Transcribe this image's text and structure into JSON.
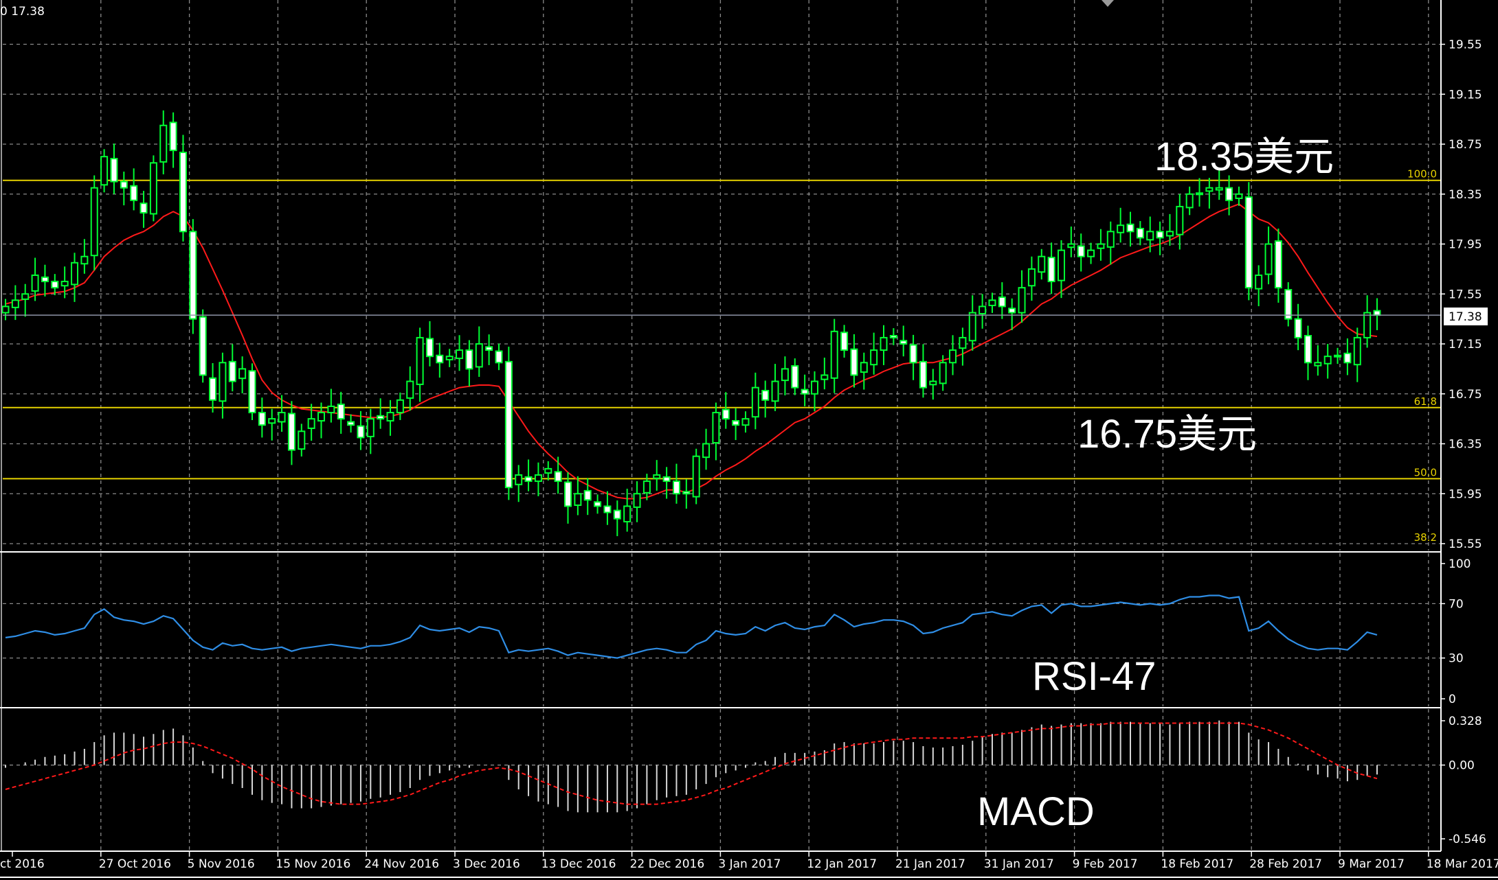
{
  "corner_label": "0 17.38",
  "colors": {
    "background": "#000000",
    "grid": "#8a8a8a",
    "candle": "#00ff33",
    "moving_average": "#ff1a1a",
    "fib_level": "#e6d200",
    "rsi": "#2f8ee6",
    "macd_hist": "#d8d8d8",
    "macd_signal": "#ff1a1a",
    "price_line": "#8f95a8"
  },
  "annotations": {
    "high": "18.35美元",
    "low": "16.75美元",
    "rsi": "RSI-47",
    "macd": "MACD"
  },
  "current_price_label": "17.38",
  "chart_data": [
    {
      "type": "candlestick",
      "ylim": [
        15.55,
        19.85
      ],
      "y_ticks": [
        "19.55",
        "19.15",
        "18.75",
        "18.35",
        "17.95",
        "17.55",
        "17.15",
        "16.75",
        "16.35",
        "15.95",
        "15.55"
      ],
      "x_tick_labels": [
        "ct 2016",
        "27 Oct 2016",
        "5 Nov 2016",
        "15 Nov 2016",
        "24 Nov 2016",
        "3 Dec 2016",
        "13 Dec 2016",
        "22 Dec 2016",
        "3 Jan 2017",
        "12 Jan 2017",
        "21 Jan 2017",
        "31 Jan 2017",
        "9 Feb 2017",
        "18 Feb 2017",
        "28 Feb 2017",
        "9 Mar 2017",
        "18 Mar 2017"
      ],
      "current_price": 17.38,
      "fib_levels": [
        {
          "label": "100.0",
          "value": 18.46
        },
        {
          "label": "61.8",
          "value": 16.64
        },
        {
          "label": "50.0",
          "value": 16.07
        },
        {
          "label": "38.2",
          "value": 15.55
        }
      ],
      "candles_close": [
        17.45,
        17.5,
        17.55,
        17.7,
        17.65,
        17.6,
        17.65,
        17.8,
        17.85,
        18.4,
        18.65,
        18.45,
        18.4,
        18.3,
        18.2,
        18.6,
        18.9,
        18.7,
        18.05,
        17.35,
        16.9,
        16.7,
        17.0,
        16.85,
        16.95,
        16.6,
        16.5,
        16.55,
        16.6,
        16.3,
        16.45,
        16.55,
        16.6,
        16.65,
        16.55,
        16.5,
        16.4,
        16.55,
        16.55,
        16.6,
        16.7,
        16.85,
        17.2,
        17.05,
        17.0,
        17.05,
        17.1,
        16.95,
        17.15,
        17.1,
        17.0,
        16.0,
        16.1,
        16.05,
        16.1,
        16.15,
        16.05,
        15.85,
        15.95,
        15.9,
        15.85,
        15.8,
        15.75,
        15.85,
        15.95,
        16.05,
        16.1,
        16.05,
        15.95,
        15.95,
        16.25,
        16.35,
        16.6,
        16.55,
        16.5,
        16.55,
        16.8,
        16.7,
        16.85,
        16.95,
        16.8,
        16.75,
        16.85,
        16.9,
        17.25,
        17.1,
        16.9,
        17.0,
        17.1,
        17.2,
        17.2,
        17.15,
        17.0,
        16.8,
        16.85,
        17.0,
        17.1,
        17.2,
        17.4,
        17.45,
        17.5,
        17.45,
        17.4,
        17.6,
        17.75,
        17.85,
        17.65,
        17.9,
        17.95,
        17.85,
        17.9,
        17.95,
        18.05,
        18.1,
        18.05,
        18.0,
        18.05,
        18.0,
        18.05,
        18.25,
        18.35,
        18.35,
        18.4,
        18.4,
        18.3,
        18.35,
        17.6,
        17.7,
        17.95,
        17.6,
        17.35,
        17.2,
        17.0,
        17.0,
        17.05,
        17.05,
        17.0,
        17.2,
        17.4,
        17.38
      ],
      "moving_average": [
        17.47,
        17.49,
        17.51,
        17.54,
        17.55,
        17.56,
        17.57,
        17.6,
        17.64,
        17.74,
        17.85,
        17.92,
        17.98,
        18.02,
        18.05,
        18.1,
        18.17,
        18.21,
        18.17,
        18.06,
        17.92,
        17.75,
        17.58,
        17.4,
        17.22,
        17.03,
        16.86,
        16.76,
        16.7,
        16.66,
        16.63,
        16.62,
        16.61,
        16.6,
        16.59,
        16.58,
        16.57,
        16.56,
        16.56,
        16.57,
        16.59,
        16.62,
        16.67,
        16.71,
        16.74,
        16.77,
        16.8,
        16.81,
        16.82,
        16.82,
        16.81,
        16.69,
        16.57,
        16.45,
        16.35,
        16.27,
        16.2,
        16.12,
        16.06,
        16.02,
        15.98,
        15.95,
        15.92,
        15.91,
        15.91,
        15.92,
        15.95,
        15.98,
        15.98,
        15.96,
        15.99,
        16.03,
        16.09,
        16.14,
        16.18,
        16.23,
        16.29,
        16.34,
        16.4,
        16.46,
        16.52,
        16.55,
        16.6,
        16.65,
        16.72,
        16.78,
        16.82,
        16.86,
        16.89,
        16.93,
        16.96,
        16.99,
        17.0,
        17.0,
        17.0,
        17.02,
        17.04,
        17.07,
        17.11,
        17.15,
        17.19,
        17.23,
        17.27,
        17.33,
        17.4,
        17.47,
        17.51,
        17.57,
        17.62,
        17.66,
        17.7,
        17.74,
        17.79,
        17.84,
        17.87,
        17.9,
        17.93,
        17.95,
        17.98,
        18.02,
        18.07,
        18.12,
        18.17,
        18.21,
        18.24,
        18.27,
        18.21,
        18.15,
        18.12,
        18.05,
        17.96,
        17.85,
        17.72,
        17.6,
        17.48,
        17.37,
        17.28,
        17.23,
        17.22,
        17.21
      ]
    },
    {
      "type": "line",
      "name": "RSI",
      "ylim": [
        0,
        100
      ],
      "y_ticks": [
        "100",
        "70",
        "30",
        "0"
      ],
      "values": [
        45,
        46,
        48,
        50,
        49,
        47,
        48,
        50,
        52,
        62,
        66,
        60,
        58,
        57,
        55,
        57,
        61,
        59,
        51,
        43,
        38,
        36,
        41,
        39,
        40,
        37,
        36,
        37,
        38,
        35,
        37,
        38,
        39,
        40,
        39,
        38,
        37,
        39,
        39,
        40,
        42,
        45,
        54,
        51,
        50,
        51,
        52,
        49,
        53,
        52,
        50,
        34,
        36,
        35,
        36,
        37,
        35,
        32,
        34,
        33,
        32,
        31,
        30,
        32,
        34,
        36,
        37,
        36,
        34,
        34,
        40,
        43,
        50,
        48,
        47,
        48,
        53,
        50,
        54,
        56,
        52,
        51,
        53,
        54,
        62,
        58,
        53,
        55,
        56,
        58,
        58,
        57,
        54,
        48,
        49,
        52,
        54,
        56,
        62,
        63,
        64,
        62,
        61,
        65,
        68,
        69,
        63,
        69,
        70,
        68,
        68,
        69,
        70,
        71,
        70,
        69,
        70,
        69,
        70,
        73,
        75,
        75,
        76,
        76,
        74,
        75,
        50,
        52,
        57,
        50,
        44,
        40,
        37,
        36,
        37,
        37,
        36,
        42,
        49,
        47
      ]
    },
    {
      "type": "bar",
      "name": "MACD",
      "ylim": [
        -0.546,
        0.328
      ],
      "y_ticks": [
        "0.328",
        "0.00",
        "-0.546"
      ],
      "histogram": [
        -0.02,
        0.0,
        0.02,
        0.04,
        0.06,
        0.07,
        0.08,
        0.1,
        0.12,
        0.17,
        0.22,
        0.24,
        0.24,
        0.23,
        0.21,
        0.23,
        0.26,
        0.27,
        0.22,
        0.13,
        0.03,
        -0.06,
        -0.1,
        -0.14,
        -0.17,
        -0.22,
        -0.26,
        -0.28,
        -0.29,
        -0.32,
        -0.32,
        -0.32,
        -0.31,
        -0.3,
        -0.29,
        -0.28,
        -0.27,
        -0.25,
        -0.24,
        -0.22,
        -0.2,
        -0.17,
        -0.11,
        -0.08,
        -0.06,
        -0.04,
        -0.02,
        -0.02,
        0.0,
        0.0,
        0.0,
        -0.11,
        -0.18,
        -0.23,
        -0.27,
        -0.29,
        -0.31,
        -0.34,
        -0.35,
        -0.35,
        -0.35,
        -0.35,
        -0.35,
        -0.34,
        -0.32,
        -0.29,
        -0.26,
        -0.24,
        -0.23,
        -0.22,
        -0.18,
        -0.14,
        -0.09,
        -0.06,
        -0.04,
        -0.02,
        0.02,
        0.03,
        0.06,
        0.09,
        0.09,
        0.09,
        0.1,
        0.11,
        0.16,
        0.17,
        0.16,
        0.16,
        0.16,
        0.17,
        0.18,
        0.18,
        0.17,
        0.14,
        0.13,
        0.13,
        0.14,
        0.15,
        0.18,
        0.21,
        0.23,
        0.24,
        0.24,
        0.26,
        0.28,
        0.3,
        0.29,
        0.3,
        0.31,
        0.31,
        0.31,
        0.31,
        0.32,
        0.32,
        0.32,
        0.31,
        0.31,
        0.31,
        0.3,
        0.31,
        0.32,
        0.32,
        0.32,
        0.33,
        0.32,
        0.32,
        0.24,
        0.19,
        0.17,
        0.12,
        0.06,
        0.01,
        -0.04,
        -0.07,
        -0.09,
        -0.1,
        -0.12,
        -0.11,
        -0.08,
        -0.07
      ],
      "signal": [
        -0.18,
        -0.16,
        -0.14,
        -0.12,
        -0.1,
        -0.08,
        -0.06,
        -0.04,
        -0.02,
        0.0,
        0.03,
        0.06,
        0.09,
        0.11,
        0.12,
        0.14,
        0.16,
        0.17,
        0.17,
        0.16,
        0.14,
        0.11,
        0.08,
        0.05,
        0.01,
        -0.03,
        -0.08,
        -0.12,
        -0.16,
        -0.19,
        -0.22,
        -0.25,
        -0.27,
        -0.28,
        -0.29,
        -0.29,
        -0.29,
        -0.28,
        -0.27,
        -0.26,
        -0.24,
        -0.22,
        -0.19,
        -0.16,
        -0.13,
        -0.11,
        -0.08,
        -0.06,
        -0.04,
        -0.03,
        -0.02,
        -0.03,
        -0.05,
        -0.08,
        -0.11,
        -0.14,
        -0.17,
        -0.2,
        -0.22,
        -0.24,
        -0.26,
        -0.27,
        -0.28,
        -0.29,
        -0.29,
        -0.29,
        -0.29,
        -0.28,
        -0.27,
        -0.26,
        -0.24,
        -0.22,
        -0.19,
        -0.17,
        -0.14,
        -0.11,
        -0.08,
        -0.05,
        -0.02,
        0.01,
        0.03,
        0.05,
        0.07,
        0.09,
        0.11,
        0.13,
        0.15,
        0.16,
        0.17,
        0.18,
        0.19,
        0.19,
        0.2,
        0.2,
        0.2,
        0.2,
        0.2,
        0.2,
        0.21,
        0.21,
        0.22,
        0.23,
        0.24,
        0.25,
        0.26,
        0.27,
        0.27,
        0.28,
        0.29,
        0.29,
        0.3,
        0.3,
        0.31,
        0.31,
        0.31,
        0.31,
        0.31,
        0.31,
        0.31,
        0.31,
        0.31,
        0.31,
        0.31,
        0.31,
        0.31,
        0.31,
        0.3,
        0.28,
        0.26,
        0.23,
        0.2,
        0.16,
        0.12,
        0.08,
        0.04,
        0.0,
        -0.03,
        -0.06,
        -0.08,
        -0.1
      ]
    }
  ]
}
